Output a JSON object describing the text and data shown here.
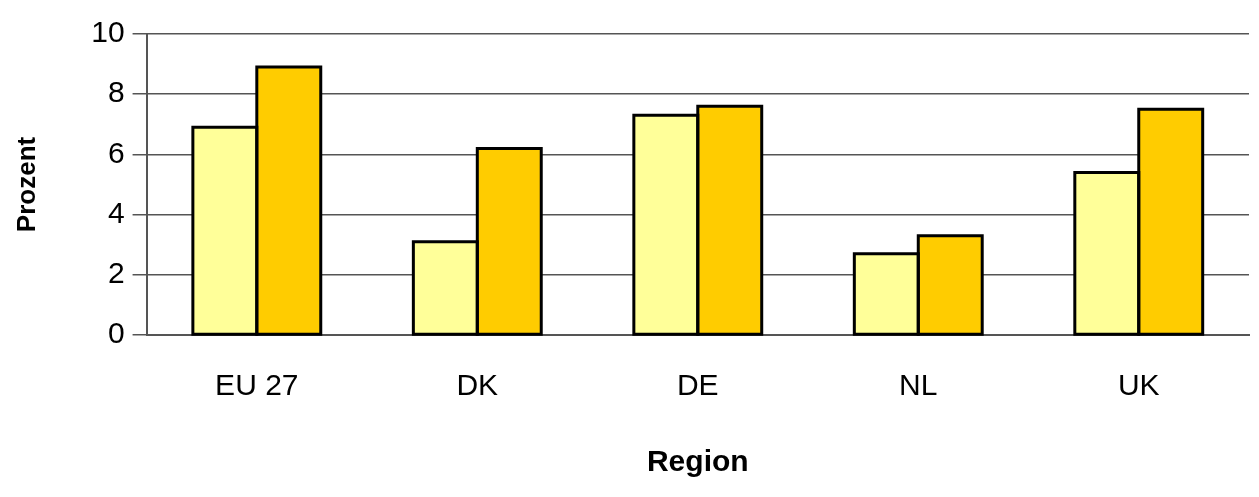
{
  "chart_data": {
    "type": "bar",
    "xlabel": "Region",
    "ylabel": "Prozent",
    "categories": [
      "EU 27",
      "DK",
      "DE",
      "NL",
      "UK"
    ],
    "series": [
      {
        "color": "#ffff99",
        "values": [
          6.9,
          3.1,
          7.3,
          2.7,
          5.4
        ]
      },
      {
        "color": "#ffcc00",
        "values": [
          8.9,
          6.2,
          7.6,
          3.3,
          7.5
        ]
      }
    ],
    "ylim": [
      0,
      10
    ],
    "yticks": [
      0,
      2,
      4,
      6,
      8,
      10
    ],
    "grid": "y",
    "legend": false
  }
}
